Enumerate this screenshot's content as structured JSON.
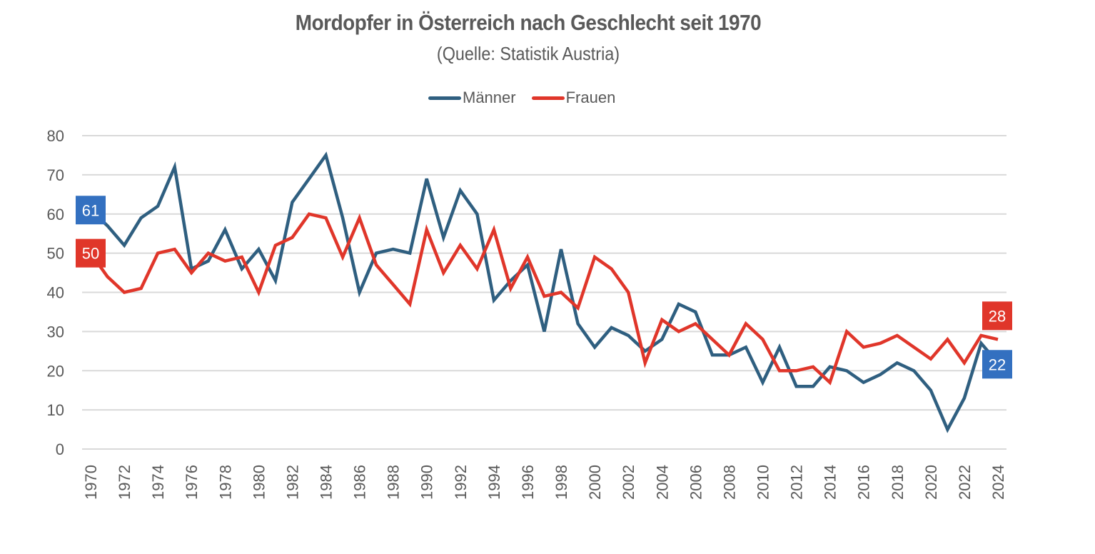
{
  "chart_data": {
    "type": "line",
    "title": "Mordopfer in Österreich nach Geschlecht seit 1970",
    "subtitle": "(Quelle: Statistik Austria)",
    "xlabel": "",
    "ylabel": "",
    "ylim": [
      0,
      80
    ],
    "yticks": [
      0,
      10,
      20,
      30,
      40,
      50,
      60,
      70,
      80
    ],
    "grid": true,
    "legend_position": "top-center",
    "x": [
      1970,
      1971,
      1972,
      1973,
      1974,
      1975,
      1976,
      1977,
      1978,
      1979,
      1980,
      1981,
      1982,
      1983,
      1984,
      1985,
      1986,
      1987,
      1988,
      1989,
      1990,
      1991,
      1992,
      1993,
      1994,
      1995,
      1996,
      1997,
      1998,
      1999,
      2000,
      2001,
      2002,
      2003,
      2004,
      2005,
      2006,
      2007,
      2008,
      2009,
      2010,
      2011,
      2012,
      2013,
      2014,
      2015,
      2016,
      2017,
      2018,
      2019,
      2020,
      2021,
      2022,
      2023,
      2024
    ],
    "xtick_labels": [
      "1970",
      "1972",
      "1974",
      "1976",
      "1978",
      "1980",
      "1982",
      "1984",
      "1986",
      "1988",
      "1990",
      "1992",
      "1994",
      "1996",
      "1998",
      "2000",
      "2002",
      "2004",
      "2006",
      "2008",
      "2010",
      "2012",
      "2014",
      "2016",
      "2018",
      "2020",
      "2022",
      "2024"
    ],
    "series": [
      {
        "name": "Männer",
        "color": "#2F5F80",
        "values": [
          61,
          57,
          52,
          59,
          62,
          72,
          46,
          48,
          56,
          46,
          51,
          43,
          63,
          69,
          75,
          59,
          40,
          50,
          51,
          50,
          69,
          54,
          66,
          60,
          38,
          43,
          47,
          30,
          51,
          32,
          26,
          31,
          29,
          25,
          28,
          37,
          35,
          24,
          24,
          26,
          17,
          26,
          16,
          16,
          21,
          20,
          17,
          19,
          22,
          20,
          15,
          5,
          13,
          27,
          22
        ],
        "start_label": "61",
        "end_label": "22",
        "label_color": "#3370C0"
      },
      {
        "name": "Frauen",
        "color": "#E0362A",
        "values": [
          50,
          44,
          40,
          41,
          50,
          51,
          45,
          50,
          48,
          49,
          40,
          52,
          54,
          60,
          59,
          49,
          59,
          47,
          42,
          37,
          56,
          45,
          52,
          46,
          56,
          41,
          49,
          39,
          40,
          36,
          49,
          46,
          40,
          22,
          33,
          30,
          32,
          28,
          24,
          32,
          28,
          20,
          20,
          21,
          17,
          30,
          26,
          27,
          29,
          26,
          23,
          28,
          22,
          29,
          28
        ],
        "start_label": "50",
        "end_label": "28",
        "label_color": "#E0362A"
      }
    ]
  }
}
